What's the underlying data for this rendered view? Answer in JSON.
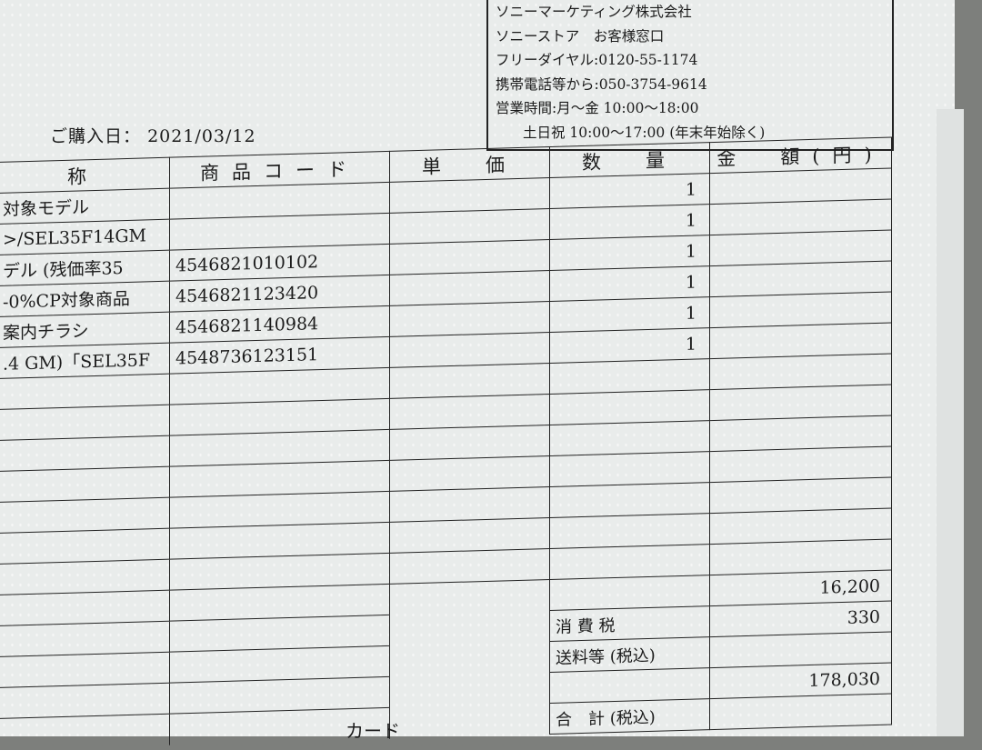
{
  "issuer": {
    "lines": [
      "ソニーマーケティング株式会社",
      "ソニーストア　お客様窓口",
      "フリーダイヤル:0120-55-1174",
      "携帯電話等から:050-3754-9614",
      "営業時間:月～金 10:00～18:00",
      "土日祝 10:00～17:00 (年末年始除く)"
    ]
  },
  "purchase_date": {
    "label": "ご購入日：",
    "value": "2021/03/12"
  },
  "table": {
    "headers": [
      "称",
      "商品コード",
      "単　価",
      "数　量",
      "金　額(円)"
    ],
    "rows": [
      {
        "name": "対象モデル",
        "code": "",
        "price": "",
        "qty": "1",
        "amount": ""
      },
      {
        "name": ">/SEL35F14GM",
        "code": "",
        "price": "",
        "qty": "1",
        "amount": ""
      },
      {
        "name": "デル (残価率35",
        "code": "4546821010102",
        "price": "",
        "qty": "1",
        "amount": ""
      },
      {
        "name": "-0%CP対象商品",
        "code": "4546821123420",
        "price": "",
        "qty": "1",
        "amount": ""
      },
      {
        "name": "案内チラシ",
        "code": "4546821140984",
        "price": "",
        "qty": "1",
        "amount": ""
      },
      {
        "name": ".4 GM)「SEL35F",
        "code": "4548736123151",
        "price": "",
        "qty": "1",
        "amount": ""
      }
    ],
    "summary": [
      {
        "label": "",
        "value": "16,200"
      },
      {
        "label": "消 費 税",
        "value": "330"
      },
      {
        "label": "送料等 (税込)",
        "value": ""
      },
      {
        "label": "",
        "value": "178,030"
      },
      {
        "label": "合　計 (税込)",
        "value": ""
      }
    ]
  },
  "footer_text": "カード"
}
